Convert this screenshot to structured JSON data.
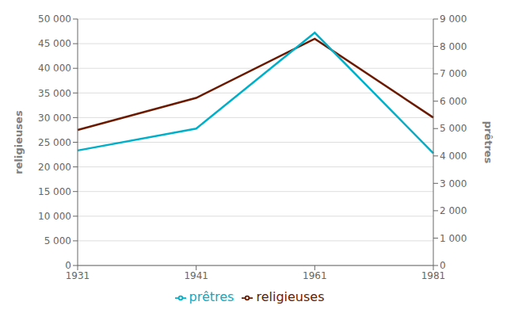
{
  "chart_data": {
    "type": "line",
    "categories": [
      "1931",
      "1941",
      "1961",
      "1981"
    ],
    "ylabel": "religieuses",
    "y2label": "prêtres",
    "series": [
      {
        "name": "religieuses",
        "color": "#6B1A00",
        "values": [
          27500,
          34000,
          46000,
          30000
        ]
      },
      {
        "name": "prêtres",
        "color": "#00B0C8",
        "values": [
          4200,
          5000,
          8500,
          4100
        ],
        "axis": "y2"
      }
    ],
    "ylim": [
      0,
      50000
    ],
    "yticks": [
      0,
      {
        "value": 5000,
        "label": "5 000"
      },
      {
        "value": 10000,
        "label": "10 000"
      },
      {
        "value": 15000,
        "label": "15 000"
      },
      {
        "value": 20000,
        "label": "20 000"
      },
      {
        "value": 25000,
        "label": "25 000"
      },
      {
        "value": 30000,
        "label": "30 000"
      },
      {
        "value": 35000,
        "label": "35 000"
      },
      {
        "value": 40000,
        "label": "40 000"
      },
      {
        "value": 45000,
        "label": "45 000"
      },
      {
        "value": 50000,
        "label": "50 000"
      }
    ],
    "y2lim": [
      0,
      9000
    ],
    "y2ticks": [
      0,
      {
        "value": 1000,
        "label": "1 000"
      },
      {
        "value": 2000,
        "label": "2 000"
      },
      {
        "value": 3000,
        "label": "3 000"
      },
      {
        "value": 4000,
        "label": "4 000"
      },
      {
        "value": 5000,
        "label": "5 000"
      },
      {
        "value": 6000,
        "label": "6 000"
      },
      {
        "value": 7000,
        "label": "7 000"
      },
      {
        "value": 8000,
        "label": "8 000"
      },
      {
        "value": 9000,
        "label": "9 000"
      }
    ],
    "grid": true,
    "legend": "bottom"
  }
}
